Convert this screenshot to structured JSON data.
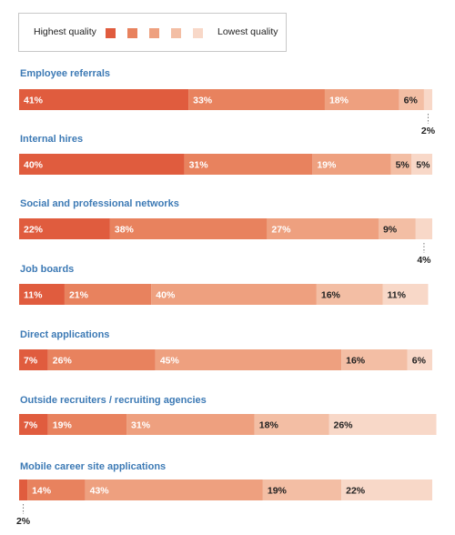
{
  "legend": {
    "high_label": "Highest quality",
    "low_label": "Lowest quality"
  },
  "colors": [
    "#e05c3e",
    "#e8825e",
    "#eea07f",
    "#f3bea4",
    "#f8d8c8"
  ],
  "chart_data": {
    "type": "bar",
    "orientation": "horizontal-stacked",
    "categories": [
      "Employee referrals",
      "Internal hires",
      "Social and professional networks",
      "Job boards",
      "Direct applications",
      "Outside recruiters / recruiting agencies",
      "Mobile career site applications"
    ],
    "series": [
      {
        "values": [
          41,
          40,
          22,
          11,
          7,
          7,
          2
        ]
      },
      {
        "values": [
          33,
          31,
          38,
          21,
          26,
          19,
          14
        ]
      },
      {
        "values": [
          18,
          19,
          27,
          40,
          45,
          31,
          43
        ]
      },
      {
        "values": [
          6,
          5,
          9,
          16,
          16,
          18,
          19
        ]
      },
      {
        "values": [
          2,
          5,
          4,
          11,
          6,
          26,
          22
        ]
      }
    ],
    "unit": "%",
    "xlim": [
      0,
      100
    ]
  }
}
